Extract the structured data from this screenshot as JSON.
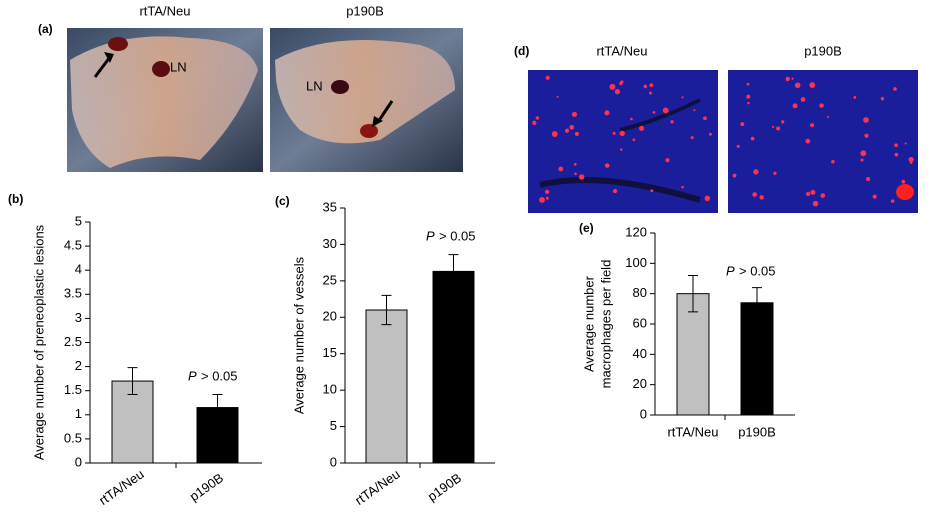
{
  "photo_panels": [
    {
      "label": "(a)",
      "images": [
        {
          "caption": "rtTA/Neu",
          "tag": "LN"
        },
        {
          "caption": "p190B",
          "tag": "LN"
        }
      ]
    },
    {
      "label": "(d)",
      "images": [
        {
          "caption": "rtTA/Neu"
        },
        {
          "caption": "p190B"
        }
      ]
    }
  ],
  "chart_data": [
    {
      "type": "bar",
      "label": "(b)",
      "ylabel": [
        "Average number of preneoplastic lesions"
      ],
      "categories": [
        "rtTA/Neu",
        "p190B"
      ],
      "values": [
        1.7,
        1.15
      ],
      "errors": [
        0.28,
        0.27
      ],
      "colors": [
        "#c0c0c0",
        "#000000"
      ],
      "annotation": [
        "P",
        "> 0.05"
      ],
      "ylim": [
        0,
        5
      ],
      "yticks": [
        0,
        0.5,
        1,
        1.5,
        2,
        2.5,
        3,
        3.5,
        4,
        4.5,
        5
      ],
      "rotate_labels": true
    },
    {
      "type": "bar",
      "label": "(c)",
      "ylabel": [
        "Average number of vessels"
      ],
      "categories": [
        "rtTA/Neu",
        "p190B"
      ],
      "values": [
        21,
        26.3
      ],
      "errors": [
        2,
        2.3
      ],
      "colors": [
        "#c0c0c0",
        "#000000"
      ],
      "annotation": [
        "P",
        "> 0.05"
      ],
      "ylim": [
        0,
        35
      ],
      "yticks": [
        0,
        5,
        10,
        15,
        20,
        25,
        30,
        35
      ],
      "rotate_labels": true
    },
    {
      "type": "bar",
      "label": "(e)",
      "ylabel": [
        "Average number",
        "macrophages per field"
      ],
      "categories": [
        "rtTA/Neu",
        "p190B"
      ],
      "values": [
        80,
        74
      ],
      "errors": [
        12,
        10
      ],
      "colors": [
        "#c0c0c0",
        "#000000"
      ],
      "annotation": [
        "P",
        "> 0.05"
      ],
      "ylim": [
        0,
        120
      ],
      "yticks": [
        0,
        20,
        40,
        60,
        80,
        100,
        120
      ],
      "rotate_labels": false
    }
  ]
}
